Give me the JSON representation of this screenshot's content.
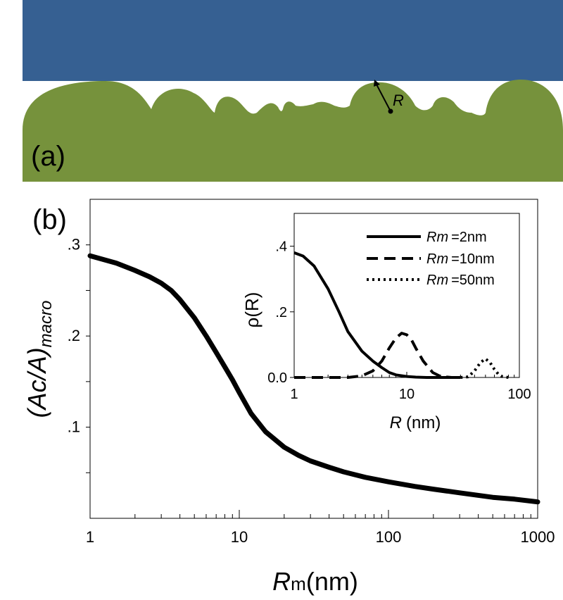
{
  "panel_a": {
    "label": "(a)",
    "annotation": "R",
    "colors": {
      "top_block": "#366092",
      "surface": "#76923c"
    }
  },
  "panel_b": {
    "label": "(b)"
  },
  "chart_data": [
    {
      "type": "line",
      "xlabel_main": "R",
      "xlabel_sub": "m",
      "xlabel_unit": "(nm)",
      "ylabel_main": "(Ac/A)",
      "ylabel_sub": "macro",
      "x_scale": "log",
      "xlim": [
        1,
        1000
      ],
      "ylim": [
        0,
        0.35
      ],
      "x_ticks": [
        {
          "value": 1,
          "label": "1"
        },
        {
          "value": 10,
          "label": "10"
        },
        {
          "value": 100,
          "label": "100"
        },
        {
          "value": 1000,
          "label": "1000"
        }
      ],
      "y_ticks": [
        {
          "value": 0.1,
          "label": ".1"
        },
        {
          "value": 0.2,
          "label": ".2"
        },
        {
          "value": 0.3,
          "label": ".3"
        }
      ],
      "y_minor_ticks": [
        0.05,
        0.15,
        0.25
      ],
      "grid": false,
      "series": [
        {
          "color": "#000000",
          "x": [
            1,
            1.5,
            2,
            2.5,
            3,
            3.5,
            4,
            5,
            6,
            7,
            8,
            9,
            10,
            12,
            15,
            20,
            25,
            30,
            40,
            50,
            70,
            100,
            150,
            200,
            300,
            500,
            700,
            1000
          ],
          "y": [
            0.288,
            0.28,
            0.272,
            0.265,
            0.258,
            0.25,
            0.24,
            0.22,
            0.2,
            0.182,
            0.166,
            0.152,
            0.138,
            0.115,
            0.095,
            0.078,
            0.069,
            0.063,
            0.056,
            0.051,
            0.045,
            0.04,
            0.035,
            0.032,
            0.028,
            0.023,
            0.021,
            0.018
          ]
        }
      ]
    },
    {
      "type": "line",
      "xlabel_main": "R",
      "xlabel_unit": "(nm)",
      "ylabel": "ρ(R)",
      "x_scale": "log",
      "xlim": [
        1,
        100
      ],
      "ylim": [
        0,
        0.5
      ],
      "x_ticks": [
        {
          "value": 1,
          "label": "1"
        },
        {
          "value": 10,
          "label": "10"
        },
        {
          "value": 100,
          "label": "100"
        }
      ],
      "y_ticks": [
        {
          "value": 0,
          "label": "0.0"
        },
        {
          "value": 0.2,
          "label": ".2"
        },
        {
          "value": 0.4,
          "label": ".4"
        }
      ],
      "legend_position": "top-right",
      "series": [
        {
          "name": "=2nm",
          "name_prefix": "R",
          "name_sub": "m",
          "style": "solid",
          "color": "#000000",
          "x": [
            1,
            1.2,
            1.5,
            2,
            2.5,
            3,
            4,
            5,
            6,
            7,
            8,
            10,
            12,
            15,
            20,
            30
          ],
          "y": [
            0.38,
            0.37,
            0.34,
            0.27,
            0.2,
            0.14,
            0.08,
            0.05,
            0.03,
            0.015,
            0.008,
            0.003,
            0.001,
            0,
            0,
            0
          ]
        },
        {
          "name": "=10nm",
          "name_prefix": "R",
          "name_sub": "m",
          "style": "dashed",
          "color": "#000000",
          "x": [
            1,
            3,
            4,
            5,
            6,
            7,
            8,
            9,
            10,
            11,
            12,
            14,
            17,
            20,
            25
          ],
          "y": [
            0,
            0,
            0.005,
            0.02,
            0.05,
            0.09,
            0.12,
            0.135,
            0.13,
            0.115,
            0.09,
            0.05,
            0.015,
            0.003,
            0
          ]
        },
        {
          "name": "=50nm",
          "name_prefix": "R",
          "name_sub": "m",
          "style": "dotted",
          "color": "#000000",
          "x": [
            30,
            35,
            40,
            45,
            50,
            55,
            60,
            65,
            70,
            80
          ],
          "y": [
            0,
            0.002,
            0.02,
            0.045,
            0.057,
            0.045,
            0.025,
            0.01,
            0.003,
            0
          ]
        }
      ]
    }
  ]
}
